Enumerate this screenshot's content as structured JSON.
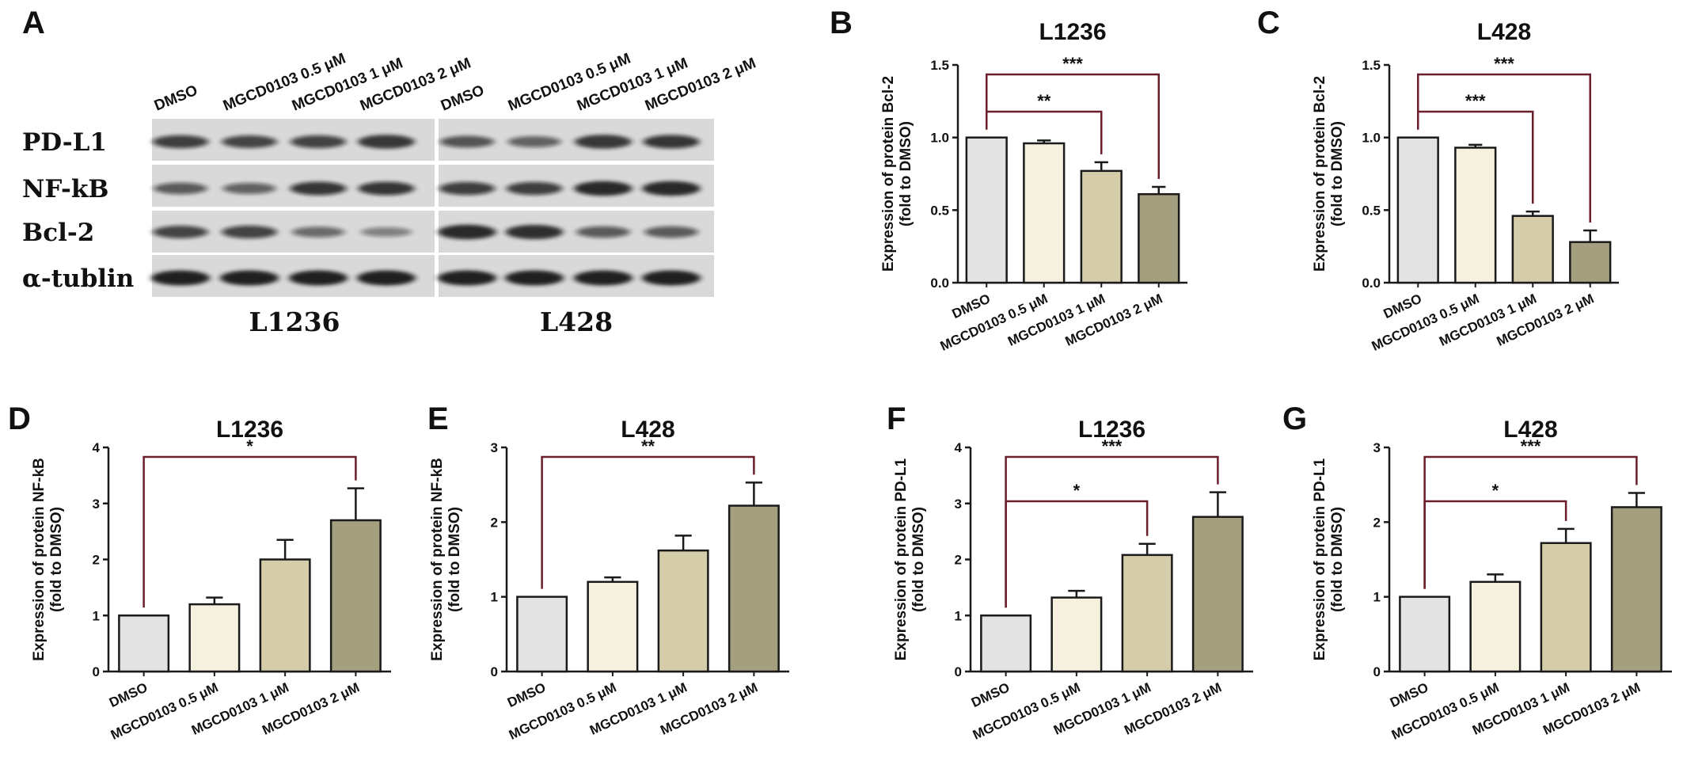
{
  "colors": {
    "bars": [
      "#e3e3e3",
      "#f6f1de",
      "#d5cdaa",
      "#a49f7f"
    ],
    "line": "#1a1a1a",
    "bracket": "#6b1f2a"
  },
  "blot": {
    "letter": "A",
    "lanes": {
      "left": [
        "DMSO",
        "MGCD0103 0.5 μM",
        "MGCD0103 1 μM",
        "MGCD0103 2 μM"
      ],
      "right": [
        "DMSO",
        "MGCD0103 0.5 μM",
        "MGCD0103 1 μM",
        "MGCD0103 2 μM"
      ]
    },
    "rows": [
      "PD-L1",
      "NF-kB",
      "Bcl-2",
      "α-tublin"
    ],
    "cell_lines": [
      "L1236",
      "L428"
    ],
    "band_intensity": {
      "left": [
        [
          0.75,
          0.7,
          0.72,
          0.85
        ],
        [
          0.55,
          0.5,
          0.8,
          0.8
        ],
        [
          0.7,
          0.72,
          0.45,
          0.3
        ],
        [
          1.0,
          1.0,
          1.0,
          1.0
        ]
      ],
      "right": [
        [
          0.6,
          0.5,
          0.85,
          0.8
        ],
        [
          0.75,
          0.75,
          0.95,
          0.95
        ],
        [
          0.95,
          0.9,
          0.55,
          0.55
        ],
        [
          1.0,
          1.0,
          1.0,
          1.0
        ]
      ]
    }
  },
  "chart_data": [
    {
      "panel": "B",
      "type": "bar",
      "title": "L1236",
      "ylabel_lines": [
        "Expression of protein Bcl-2",
        "(fold to DMSO)"
      ],
      "categories": [
        "DMSO",
        "MGCD0103 0.5 μM",
        "MGCD0103 1 μM",
        "MGCD0103 2 μM"
      ],
      "values": [
        1.0,
        0.96,
        0.77,
        0.61
      ],
      "errors": [
        0,
        0.02,
        0.06,
        0.05
      ],
      "ylim": [
        0,
        1.5
      ],
      "yticks": [
        "0.0",
        "0.5",
        "1.0",
        "1.5"
      ],
      "significance": [
        {
          "from": 0,
          "to": 2,
          "label": "**"
        },
        {
          "from": 0,
          "to": 3,
          "label": "***"
        }
      ]
    },
    {
      "panel": "C",
      "type": "bar",
      "title": "L428",
      "ylabel_lines": [
        "Expression of protein Bcl-2",
        "(fold to DMSO)"
      ],
      "categories": [
        "DMSO",
        "MGCD0103 0.5 μM",
        "MGCD0103 1 μM",
        "MGCD0103 2 μM"
      ],
      "values": [
        1.0,
        0.93,
        0.46,
        0.28
      ],
      "errors": [
        0,
        0.02,
        0.03,
        0.08
      ],
      "ylim": [
        0,
        1.5
      ],
      "yticks": [
        "0.0",
        "0.5",
        "1.0",
        "1.5"
      ],
      "significance": [
        {
          "from": 0,
          "to": 2,
          "label": "***"
        },
        {
          "from": 0,
          "to": 3,
          "label": "***"
        }
      ]
    },
    {
      "panel": "D",
      "type": "bar",
      "title": "L1236",
      "ylabel_lines": [
        "Expression of protein NF-kB",
        "(fold to DMSO)"
      ],
      "categories": [
        "DMSO",
        "MGCD0103 0.5 μM",
        "MGCD0103 1 μM",
        "MGCD0103 2 μM"
      ],
      "values": [
        1.0,
        1.2,
        2.0,
        2.7
      ],
      "errors": [
        0,
        0.12,
        0.35,
        0.57
      ],
      "ylim": [
        0,
        4
      ],
      "yticks": [
        "0",
        "1",
        "2",
        "3",
        "4"
      ],
      "significance": [
        {
          "from": 0,
          "to": 3,
          "label": "*"
        }
      ]
    },
    {
      "panel": "E",
      "type": "bar",
      "title": "L428",
      "ylabel_lines": [
        "Expression of protein NF-kB",
        "(fold to DMSO)"
      ],
      "categories": [
        "DMSO",
        "MGCD0103 0.5 μM",
        "MGCD0103 1 μM",
        "MGCD0103 2 μM"
      ],
      "values": [
        1.0,
        1.2,
        1.62,
        2.22
      ],
      "errors": [
        0,
        0.06,
        0.2,
        0.31
      ],
      "ylim": [
        0,
        3
      ],
      "yticks": [
        "0",
        "1",
        "2",
        "3"
      ],
      "significance": [
        {
          "from": 0,
          "to": 3,
          "label": "**"
        }
      ]
    },
    {
      "panel": "F",
      "type": "bar",
      "title": "L1236",
      "ylabel_lines": [
        "Expression of protein PD-L1",
        "(fold to DMSO)"
      ],
      "categories": [
        "DMSO",
        "MGCD0103 0.5 μM",
        "MGCD0103 1 μM",
        "MGCD0103 2 μM"
      ],
      "values": [
        1.0,
        1.32,
        2.08,
        2.76
      ],
      "errors": [
        0,
        0.12,
        0.2,
        0.44
      ],
      "ylim": [
        0,
        4
      ],
      "yticks": [
        "0",
        "1",
        "2",
        "3",
        "4"
      ],
      "significance": [
        {
          "from": 0,
          "to": 2,
          "label": "*"
        },
        {
          "from": 0,
          "to": 3,
          "label": "***"
        }
      ]
    },
    {
      "panel": "G",
      "type": "bar",
      "title": "L428",
      "ylabel_lines": [
        "Expression of protein PD-L1",
        "(fold to DMSO)"
      ],
      "categories": [
        "DMSO",
        "MGCD0103 0.5 μM",
        "MGCD0103 1 μM",
        "MGCD0103 2 μM"
      ],
      "values": [
        1.0,
        1.2,
        1.72,
        2.2
      ],
      "errors": [
        0,
        0.1,
        0.19,
        0.19
      ],
      "ylim": [
        0,
        3
      ],
      "yticks": [
        "0",
        "1",
        "2",
        "3"
      ],
      "significance": [
        {
          "from": 0,
          "to": 2,
          "label": "*"
        },
        {
          "from": 0,
          "to": 3,
          "label": "***"
        }
      ]
    }
  ]
}
